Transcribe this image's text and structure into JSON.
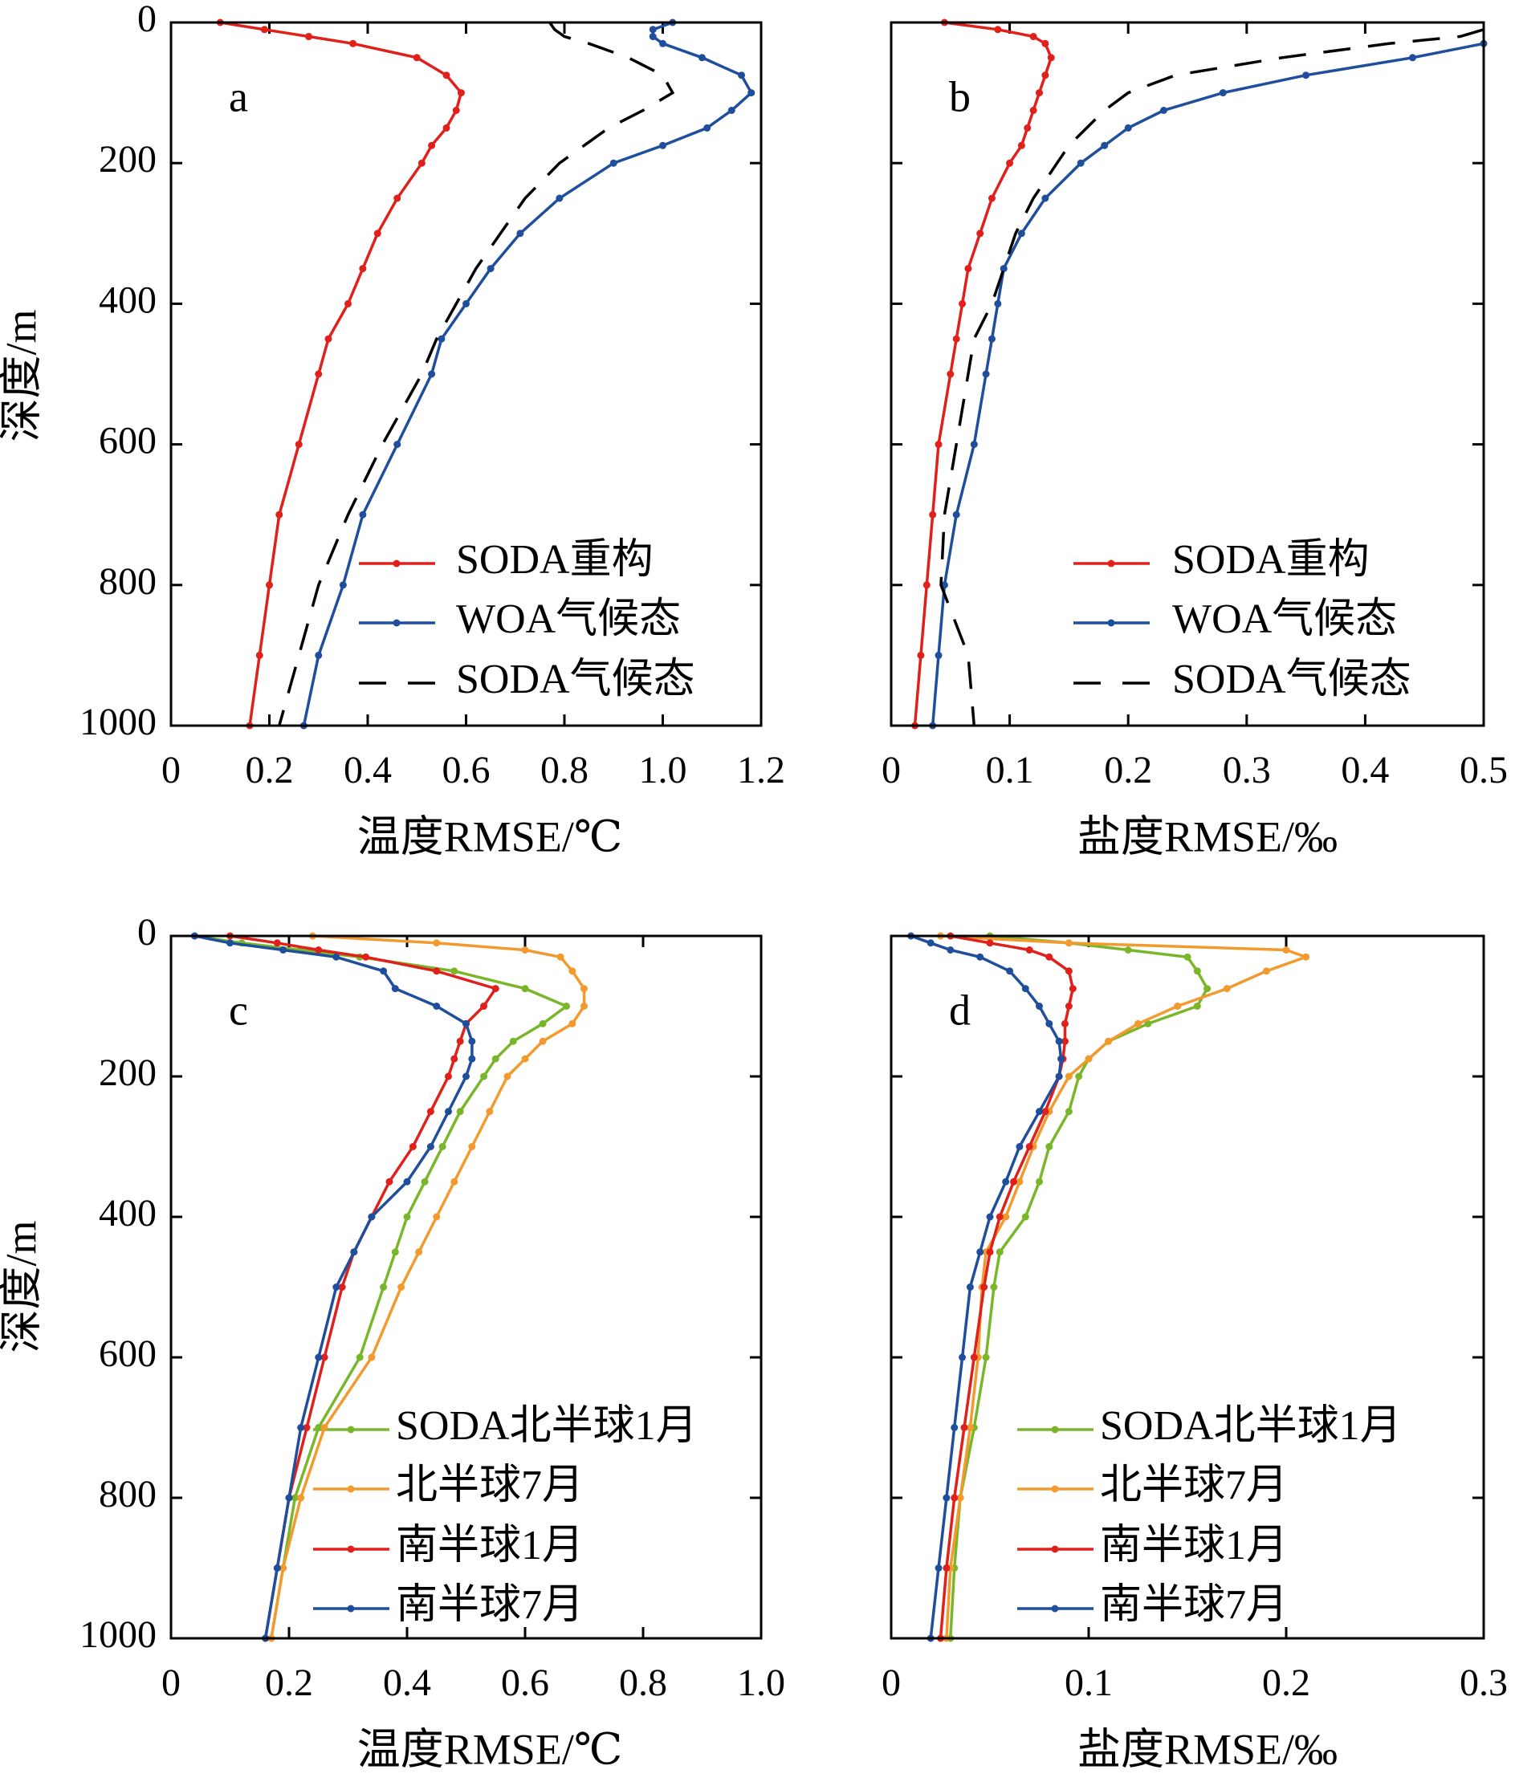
{
  "chart_data": [
    {
      "type": "line",
      "label": "a",
      "xlabel": "温度RMSE/℃",
      "ylabel": "深度/m",
      "legend": "lower right",
      "xlim": [
        0,
        1.2
      ],
      "xticks": [
        0,
        0.2,
        0.4,
        0.6,
        0.8,
        {
          "value": 1,
          "label": "1.0"
        },
        1.2
      ],
      "ylim": [
        0,
        1000
      ],
      "yticks": [
        0,
        200,
        400,
        600,
        800,
        1000
      ],
      "y_reversed": true,
      "y": [
        0,
        10,
        20,
        30,
        50,
        75,
        100,
        125,
        150,
        175,
        200,
        250,
        300,
        350,
        400,
        450,
        500,
        600,
        700,
        800,
        900,
        1000
      ],
      "series": [
        {
          "name": "SODA重构",
          "color": "#e0201b",
          "style": "solid-marker",
          "values": [
            0.1,
            0.19,
            0.28,
            0.37,
            0.5,
            0.56,
            0.59,
            0.58,
            0.56,
            0.53,
            0.51,
            0.46,
            0.42,
            0.39,
            0.36,
            0.32,
            0.3,
            0.26,
            0.22,
            0.2,
            0.18,
            0.16
          ]
        },
        {
          "name": "WOA气候态",
          "color": "#1f4e9c",
          "style": "solid-marker",
          "values": [
            1.02,
            0.98,
            0.98,
            1.0,
            1.08,
            1.16,
            1.18,
            1.14,
            1.09,
            1.0,
            0.9,
            0.79,
            0.71,
            0.65,
            0.6,
            0.55,
            0.53,
            0.46,
            0.39,
            0.35,
            0.3,
            0.27
          ]
        },
        {
          "name": "SODA气候态",
          "color": "#000000",
          "style": "dashed",
          "values": [
            0.77,
            0.78,
            0.8,
            0.85,
            0.93,
            1.0,
            1.02,
            0.96,
            0.89,
            0.84,
            0.79,
            0.72,
            0.67,
            0.62,
            0.58,
            0.54,
            0.51,
            0.43,
            0.36,
            0.3,
            0.26,
            0.22
          ]
        }
      ]
    },
    {
      "type": "line",
      "label": "b",
      "xlabel": "盐度RMSE/‰",
      "legend": "lower right",
      "xlim": [
        0,
        0.5
      ],
      "xticks": [
        0,
        0.1,
        0.2,
        0.3,
        0.4,
        0.5
      ],
      "ylim": [
        0,
        1000
      ],
      "yticks": [
        0,
        200,
        400,
        600,
        800,
        1000
      ],
      "y_reversed": true,
      "y": [
        0,
        10,
        20,
        30,
        50,
        75,
        100,
        125,
        150,
        175,
        200,
        250,
        300,
        350,
        400,
        450,
        500,
        600,
        700,
        800,
        900,
        1000
      ],
      "series": [
        {
          "name": "SODA重构",
          "color": "#e0201b",
          "style": "solid-marker",
          "values": [
            0.045,
            0.09,
            0.12,
            0.13,
            0.135,
            0.13,
            0.125,
            0.12,
            0.115,
            0.11,
            0.1,
            0.085,
            0.075,
            0.065,
            0.06,
            0.055,
            0.05,
            0.04,
            0.035,
            0.03,
            0.025,
            0.02
          ]
        },
        {
          "name": "WOA气候态",
          "color": "#1f4e9c",
          "style": "solid-marker",
          "values": [
            null,
            null,
            null,
            0.5,
            0.44,
            0.35,
            0.28,
            0.23,
            0.2,
            0.18,
            0.16,
            0.13,
            0.11,
            0.095,
            0.09,
            0.085,
            0.08,
            0.07,
            0.055,
            0.045,
            0.04,
            0.035
          ]
        },
        {
          "name": "SODA气候态",
          "color": "#000000",
          "style": "dashed",
          "values": [
            null,
            0.5,
            0.48,
            0.42,
            0.33,
            0.24,
            0.2,
            0.18,
            0.165,
            0.15,
            0.14,
            0.12,
            0.105,
            0.095,
            0.085,
            0.07,
            0.065,
            0.055,
            0.045,
            0.042,
            0.065,
            0.07
          ]
        }
      ]
    },
    {
      "type": "line",
      "label": "c",
      "xlabel": "温度RMSE/℃",
      "ylabel": "深度/m",
      "legend": "lower right",
      "xlim": [
        0,
        1
      ],
      "xticks": [
        0,
        0.2,
        0.4,
        0.6,
        0.8,
        {
          "value": 1,
          "label": "1.0"
        }
      ],
      "ylim": [
        0,
        1000
      ],
      "yticks": [
        0,
        200,
        400,
        600,
        800,
        1000
      ],
      "y_reversed": true,
      "y": [
        0,
        10,
        20,
        30,
        50,
        75,
        100,
        125,
        150,
        175,
        200,
        250,
        300,
        350,
        400,
        450,
        500,
        600,
        700,
        800,
        900,
        1000
      ],
      "series": [
        {
          "name": "SODA北半球1月",
          "color": "#7ab62a",
          "style": "solid-marker",
          "values": [
            0.04,
            0.12,
            0.22,
            0.32,
            0.48,
            0.6,
            0.67,
            0.63,
            0.58,
            0.55,
            0.53,
            0.49,
            0.46,
            0.43,
            0.4,
            0.38,
            0.36,
            0.32,
            0.25,
            0.21,
            0.19,
            0.17
          ]
        },
        {
          "name": "北半球7月",
          "color": "#f39a2f",
          "style": "solid-marker",
          "values": [
            0.24,
            0.45,
            0.6,
            0.66,
            0.68,
            0.7,
            0.7,
            0.68,
            0.63,
            0.6,
            0.57,
            0.54,
            0.51,
            0.48,
            0.45,
            0.42,
            0.39,
            0.34,
            0.26,
            0.22,
            0.19,
            0.17
          ]
        },
        {
          "name": "南半球1月",
          "color": "#e0201b",
          "style": "solid-marker",
          "values": [
            0.1,
            0.18,
            0.25,
            0.33,
            0.45,
            0.55,
            0.53,
            0.5,
            0.49,
            0.48,
            0.47,
            0.44,
            0.41,
            0.37,
            0.34,
            0.31,
            0.29,
            0.26,
            0.23,
            0.2,
            0.18,
            0.16
          ]
        },
        {
          "name": "南半球7月",
          "color": "#1f4e9c",
          "style": "solid-marker",
          "values": [
            0.04,
            0.1,
            0.19,
            0.28,
            0.36,
            0.38,
            0.45,
            0.5,
            0.51,
            0.51,
            0.5,
            0.47,
            0.44,
            0.4,
            0.34,
            0.31,
            0.28,
            0.25,
            0.22,
            0.2,
            0.18,
            0.16
          ]
        }
      ]
    },
    {
      "type": "line",
      "label": "d",
      "xlabel": "盐度RMSE/‰",
      "legend": "lower right",
      "xlim": [
        0,
        0.3
      ],
      "xticks": [
        0,
        0.1,
        0.2,
        0.3
      ],
      "ylim": [
        0,
        1000
      ],
      "yticks": [
        0,
        200,
        400,
        600,
        800,
        1000
      ],
      "y_reversed": true,
      "y": [
        0,
        10,
        20,
        30,
        50,
        75,
        100,
        125,
        150,
        175,
        200,
        250,
        300,
        350,
        400,
        450,
        500,
        600,
        700,
        800,
        900,
        1000
      ],
      "series": [
        {
          "name": "SODA北半球1月",
          "color": "#7ab62a",
          "style": "solid-marker",
          "values": [
            0.05,
            0.09,
            0.12,
            0.15,
            0.155,
            0.16,
            0.155,
            0.13,
            0.11,
            0.1,
            0.095,
            0.09,
            0.08,
            0.075,
            0.068,
            0.055,
            0.052,
            0.048,
            0.042,
            0.035,
            0.032,
            0.03
          ]
        },
        {
          "name": "北半球7月",
          "color": "#f39a2f",
          "style": "solid-marker",
          "values": [
            0.025,
            0.09,
            0.2,
            0.21,
            0.19,
            0.17,
            0.145,
            0.125,
            0.11,
            0.1,
            0.09,
            0.08,
            0.072,
            0.065,
            0.058,
            0.048,
            0.046,
            0.044,
            0.04,
            0.035,
            0.03,
            0.028
          ]
        },
        {
          "name": "南半球1月",
          "color": "#e0201b",
          "style": "solid-marker",
          "values": [
            0.03,
            0.05,
            0.07,
            0.08,
            0.09,
            0.092,
            0.09,
            0.088,
            0.088,
            0.087,
            0.085,
            0.078,
            0.07,
            0.062,
            0.055,
            0.05,
            0.047,
            0.042,
            0.037,
            0.032,
            0.028,
            0.025
          ]
        },
        {
          "name": "南半球7月",
          "color": "#1f4e9c",
          "style": "solid-marker",
          "values": [
            0.01,
            0.02,
            0.03,
            0.045,
            0.06,
            0.068,
            0.075,
            0.08,
            0.085,
            0.086,
            0.085,
            0.075,
            0.065,
            0.058,
            0.05,
            0.045,
            0.04,
            0.036,
            0.032,
            0.028,
            0.024,
            0.02
          ]
        }
      ]
    }
  ]
}
